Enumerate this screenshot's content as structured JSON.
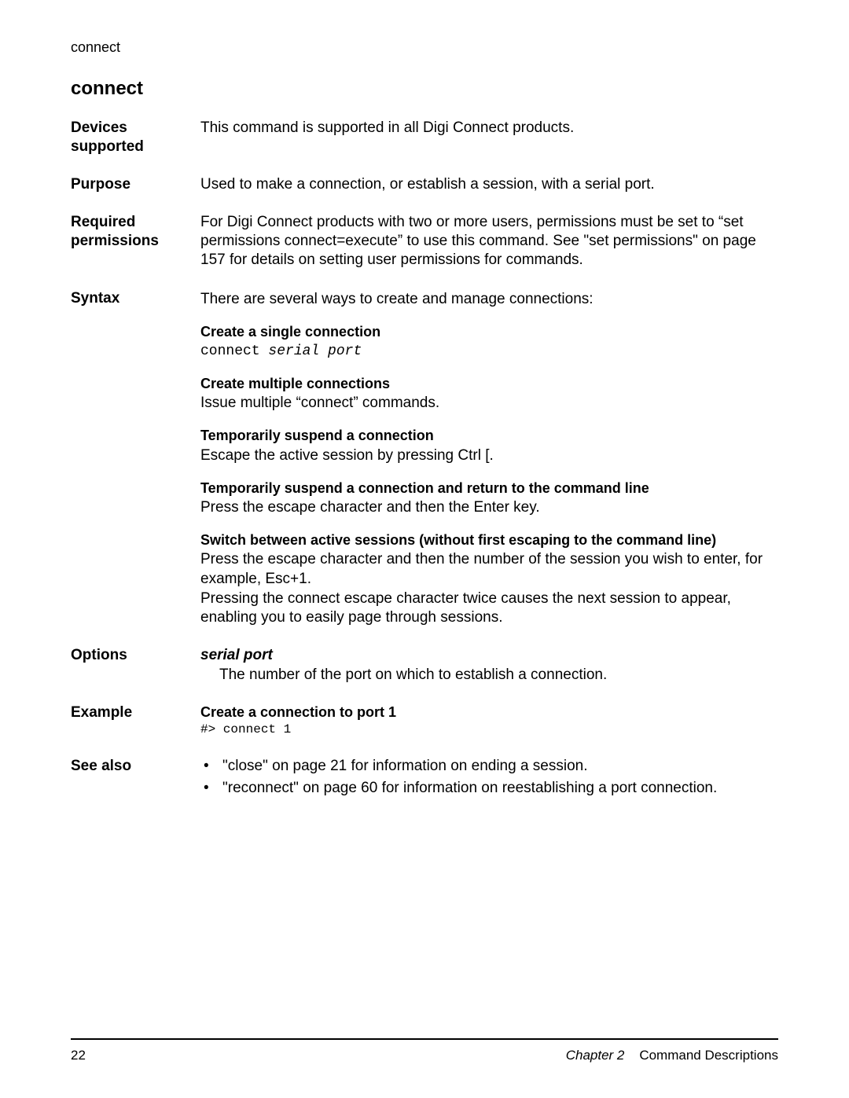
{
  "header": {
    "running_head": "connect"
  },
  "title": "connect",
  "sections": {
    "devices": {
      "label": "Devices supported",
      "text": "This command is supported in all Digi Connect products."
    },
    "purpose": {
      "label": "Purpose",
      "text": "Used to make a connection, or establish a session, with a serial port."
    },
    "permissions": {
      "label": "Required permissions",
      "text": "For Digi Connect products with two or more users, permissions must be set to “set permissions connect=execute” to use this command. See \"set permissions\" on page 157 for details on setting user permissions for commands."
    },
    "syntax": {
      "label": "Syntax",
      "intro": "There are several ways to create and manage connections:",
      "items": [
        {
          "head": "Create a single connection",
          "code_prefix": "connect ",
          "code_italic": "serial port"
        },
        {
          "head": "Create multiple connections",
          "body": "Issue multiple “connect” commands."
        },
        {
          "head": "Temporarily suspend a connection",
          "body": "Escape the active session by pressing Ctrl [."
        },
        {
          "head": "Temporarily suspend a connection and return to the command line",
          "body": "Press the escape character and then the Enter key."
        },
        {
          "head": "Switch between active sessions (without first escaping to the command line)",
          "body": "Press the escape character and then the number of the session you wish to enter, for example, Esc+1.",
          "body2": "Pressing the connect escape character twice causes the next session to appear, enabling you to easily page through sessions."
        }
      ]
    },
    "options": {
      "label": "Options",
      "term": "serial port",
      "desc": "The number of the port on which to establish a connection."
    },
    "example": {
      "label": "Example",
      "head": "Create a connection to port 1",
      "code": "#> connect 1"
    },
    "seealso": {
      "label": "See also",
      "items": [
        "\"close\" on page 21 for information on ending a session.",
        "\"reconnect\" on page 60 for information on reestablishing a port connection."
      ]
    }
  },
  "footer": {
    "page_number": "22",
    "chapter_label": "Chapter 2",
    "chapter_title": "Command Descriptions"
  }
}
